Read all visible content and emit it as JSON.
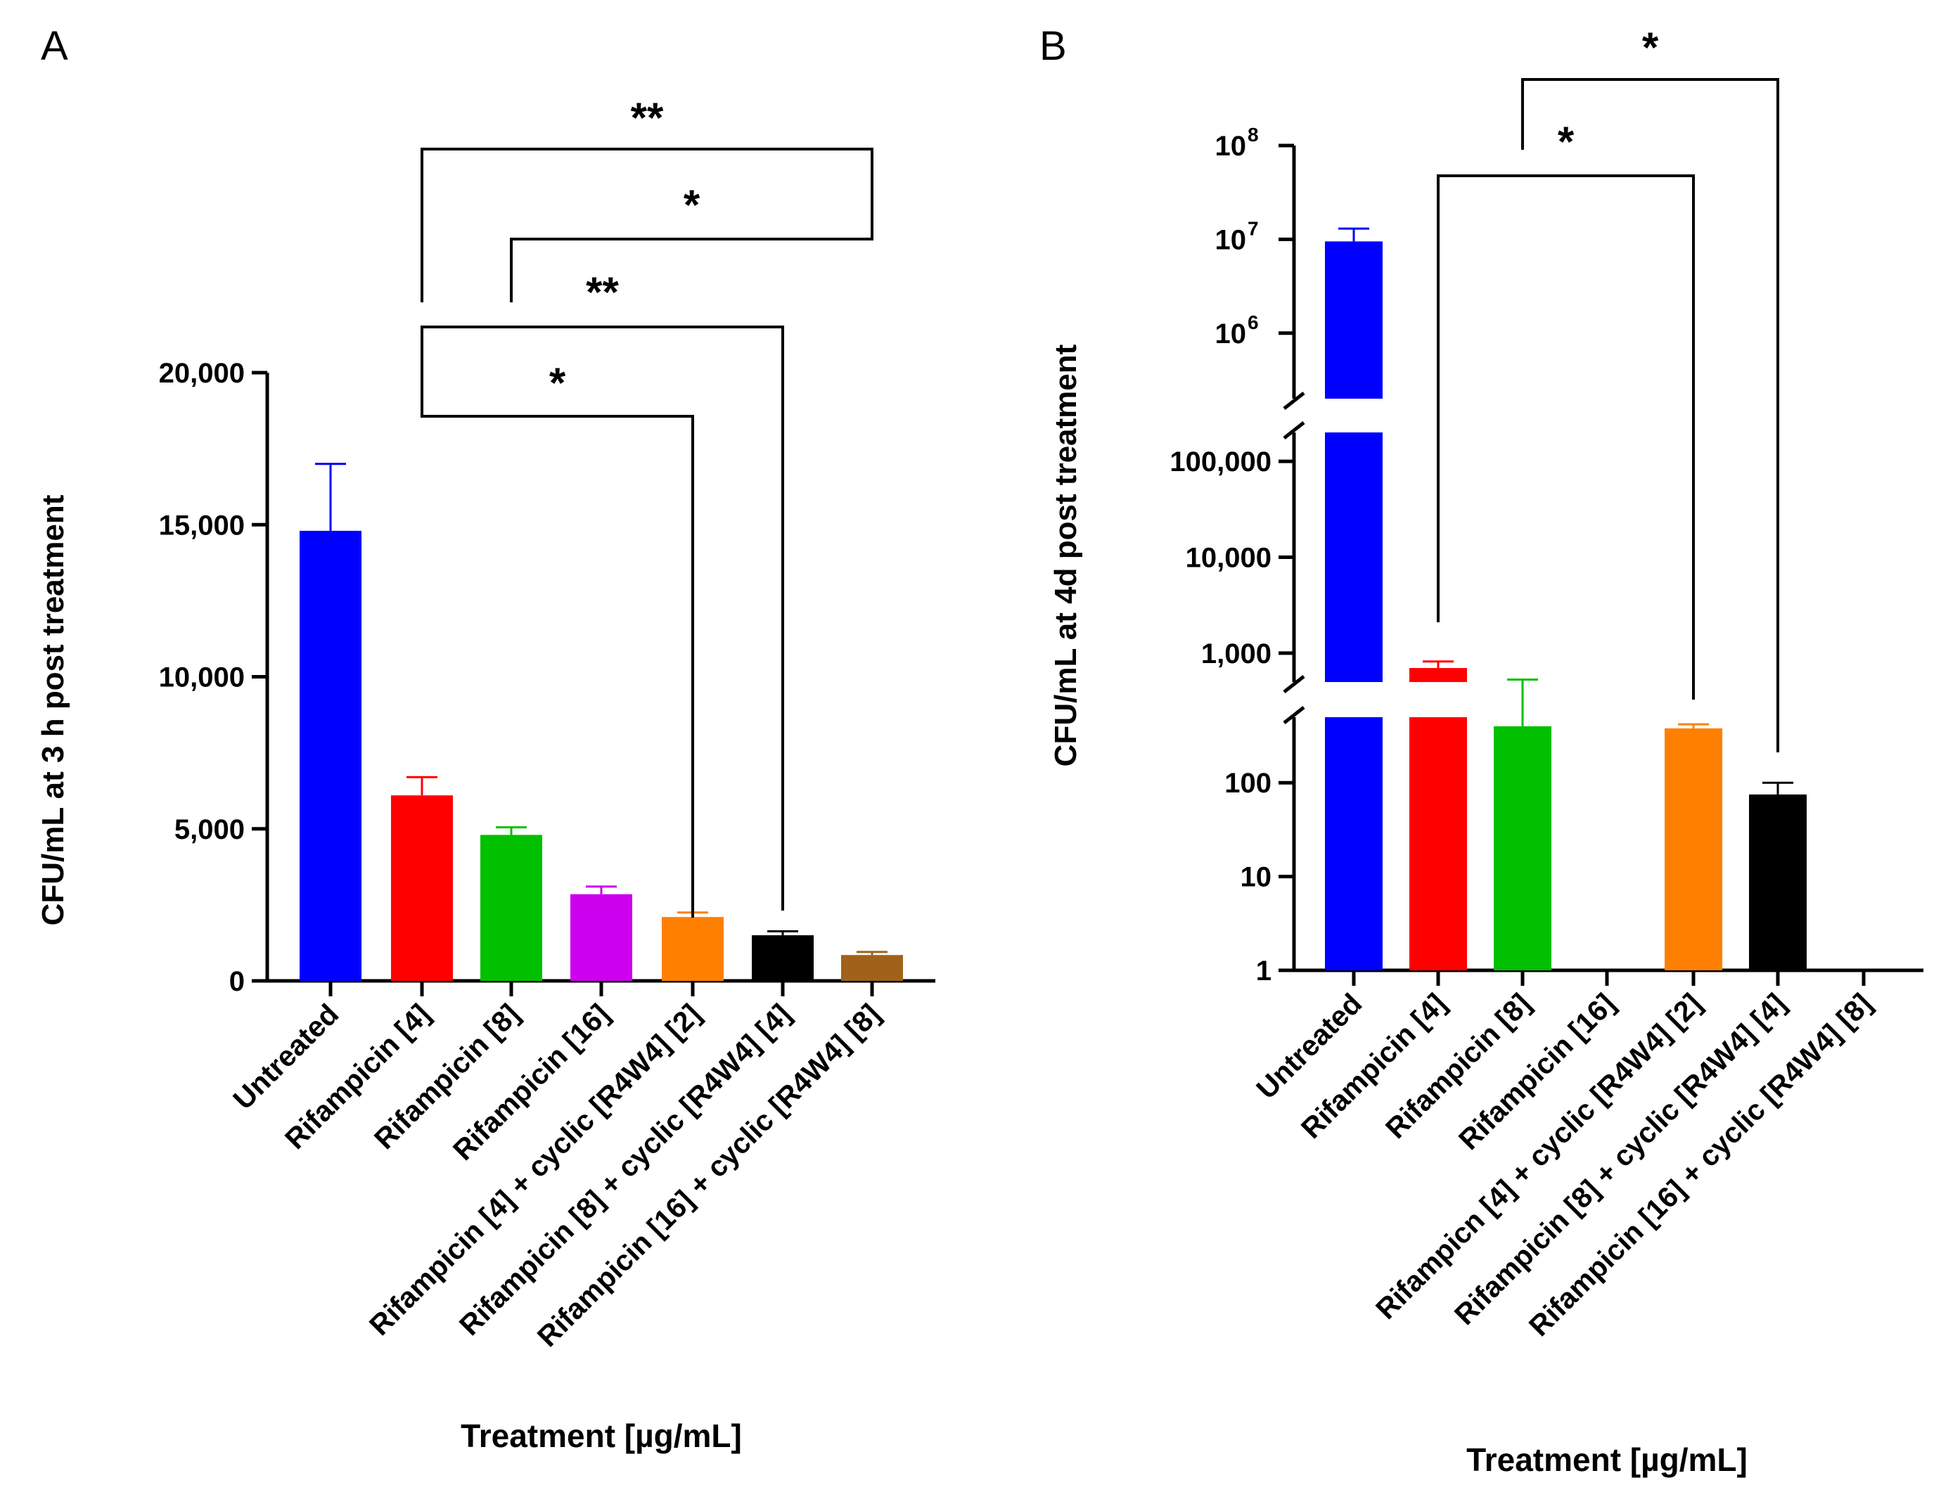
{
  "chart_data": [
    {
      "panel": "A",
      "type": "bar",
      "scale": "linear",
      "ylabel": "CFU/mL at 3 h post treatment",
      "xlabel": "Treatment [µg/mL]",
      "ylim": [
        0,
        20000
      ],
      "yticks": [
        {
          "value": 0,
          "label": "0"
        },
        {
          "value": 5000,
          "label": "5,000"
        },
        {
          "value": 10000,
          "label": "10,000"
        },
        {
          "value": 15000,
          "label": "15,000"
        },
        {
          "value": 20000,
          "label": "20,000"
        }
      ],
      "categories": [
        "Untreated",
        "Rifampicin [4]",
        "Rifampicin [8]",
        "Rifampicin [16]",
        "Rifampicin [4] + cyclic [R4W4] [2]",
        "Rifampicin [8]  + cyclic [R4W4] [4]",
        "Rifampicin [16] + cyclic [R4W4] [8]"
      ],
      "values": [
        14800,
        6100,
        4800,
        2850,
        2100,
        1500,
        850
      ],
      "errors": [
        2200,
        600,
        250,
        250,
        150,
        130,
        100
      ],
      "colors": [
        "#0000ff",
        "#ff0000",
        "#00c000",
        "#cc00ee",
        "#ff8000",
        "#000000",
        "#a0621a"
      ],
      "significance": [
        {
          "from": 1,
          "to": 6,
          "label": "**"
        },
        {
          "from": 2,
          "to": 6,
          "label": "*"
        },
        {
          "from": 1,
          "to": 5,
          "label": "**"
        },
        {
          "from": 1,
          "to": 4,
          "label": "*"
        }
      ]
    },
    {
      "panel": "B",
      "type": "bar",
      "scale": "log-segmented",
      "ylabel": "CFU/mL at 4d post treatment",
      "xlabel": "Treatment [µg/mL]",
      "ylim": [
        1,
        100000000
      ],
      "yticks": [
        {
          "value": 1,
          "label": "1"
        },
        {
          "value": 10,
          "label": "10"
        },
        {
          "value": 100,
          "label": "100"
        },
        {
          "value": 1000,
          "label": "1,000"
        },
        {
          "value": 10000,
          "label": "10,000"
        },
        {
          "value": 100000,
          "label": "100,000"
        },
        {
          "value": 1000000,
          "label": "10",
          "exp": "6"
        },
        {
          "value": 10000000,
          "label": "10",
          "exp": "7"
        },
        {
          "value": 100000000,
          "label": "10",
          "exp": "8"
        }
      ],
      "categories": [
        "Untreated",
        "Rifampicin [4]",
        "Rifampicin [8]",
        "Rifampicin [16]",
        "Rifampicn [4] + cyclic [R4W4] [2]",
        "Rifampicin [8] + cyclic [R4W4] [4]",
        "Rifampicin [16] + cyclic [R4W4] [8]"
      ],
      "values": [
        9500000,
        700,
        400,
        null,
        380,
        75,
        null
      ],
      "errors": [
        3500000,
        120,
        130,
        null,
        40,
        25,
        null
      ],
      "colors": [
        "#0000ff",
        "#ff0000",
        "#00c000",
        "#cc00ee",
        "#ff8000",
        "#000000",
        "#a0621a"
      ],
      "significance": [
        {
          "from": 2,
          "to": 5,
          "label": "*"
        },
        {
          "from": 1,
          "to": 4,
          "label": "*"
        }
      ]
    }
  ]
}
